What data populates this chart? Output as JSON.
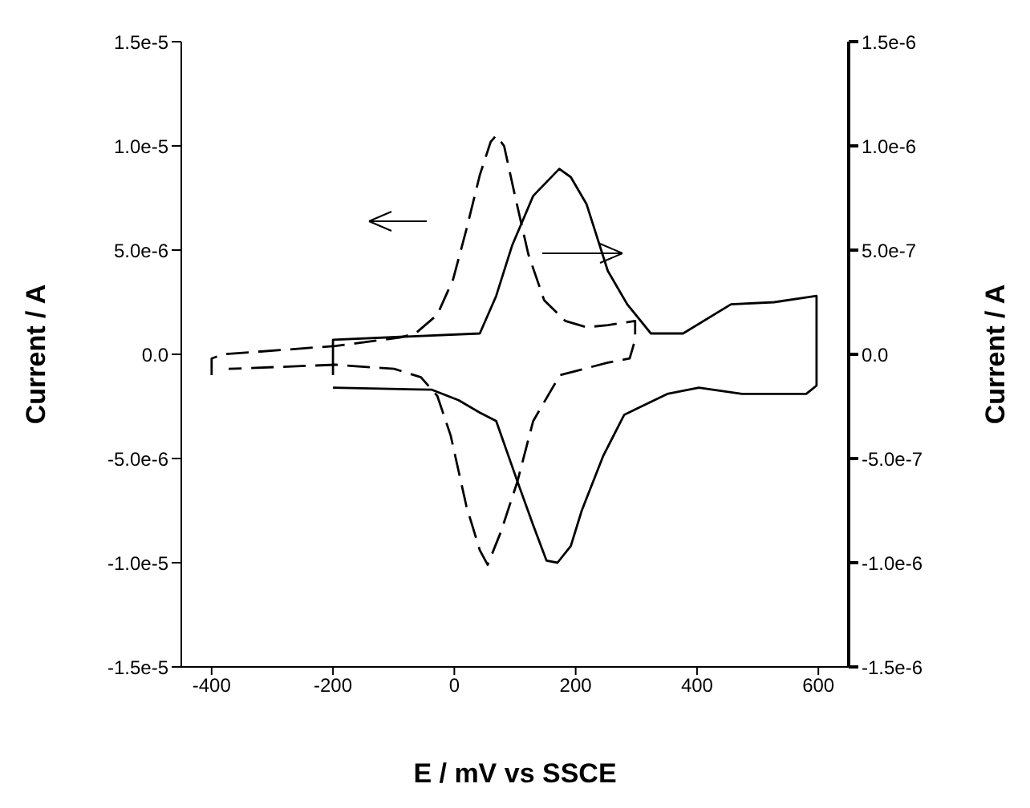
{
  "chart_data": {
    "type": "line",
    "xlabel": "E / mV vs SSCE",
    "ylabel": "Current / A",
    "y2label": "Current / A",
    "xlim": [
      -450,
      650
    ],
    "xticks": [
      -400,
      -200,
      0,
      200,
      400,
      600
    ],
    "ylim": [
      -1.5e-05,
      1.5e-05
    ],
    "yticks": [
      {
        "value": -1.5e-05,
        "label": "-1.5e-5"
      },
      {
        "value": -1e-05,
        "label": "-1.0e-5"
      },
      {
        "value": -5e-06,
        "label": "-5.0e-6"
      },
      {
        "value": 0,
        "label": "0.0"
      },
      {
        "value": 5e-06,
        "label": "5.0e-6"
      },
      {
        "value": 1e-05,
        "label": "1.0e-5"
      },
      {
        "value": 1.5e-05,
        "label": "1.5e-5"
      }
    ],
    "y2lim": [
      -1.5e-06,
      1.5e-06
    ],
    "y2ticks": [
      {
        "value": -1.5e-06,
        "label": "-1.5e-6"
      },
      {
        "value": -1e-06,
        "label": "-1.0e-6"
      },
      {
        "value": -5e-07,
        "label": "-5.0e-7"
      },
      {
        "value": 0,
        "label": "0.0"
      },
      {
        "value": 5e-07,
        "label": "5.0e-7"
      },
      {
        "value": 1e-06,
        "label": "1.0e-6"
      },
      {
        "value": 1.5e-06,
        "label": "1.5e-6"
      }
    ],
    "marker": "none",
    "series": [
      {
        "color": "#000000",
        "line_style": "dashed",
        "x": [
          -400,
          -400,
          -381,
          -196,
          -90,
          -64,
          -28,
          -2,
          20,
          42,
          60,
          69,
          82,
          100,
          122,
          148,
          183,
          218,
          253,
          298,
          298,
          289,
          253,
          174,
          130,
          104,
          77,
          55,
          42,
          20,
          -6,
          -28,
          -55,
          -99,
          -196,
          -372
        ],
        "values": [
          -1e-06,
          -2e-07,
          0,
          4e-07,
          8e-07,
          1e-06,
          1.9e-06,
          3.6e-06,
          6e-06,
          8.6e-06,
          1.02e-05,
          1.05e-05,
          1e-05,
          7.6e-06,
          4.8e-06,
          2.6e-06,
          1.6e-06,
          1.3e-06,
          1.4e-06,
          1.6e-06,
          7e-07,
          -2e-07,
          -4e-07,
          -1e-06,
          -3.2e-06,
          -6.1e-06,
          -8.5e-06,
          -1.01e-05,
          -9.4e-06,
          -7.3e-06,
          -3.9e-06,
          -2e-06,
          -1.1e-06,
          -7e-07,
          -5e-07,
          -7e-07
        ]
      },
      {
        "color": "#000000",
        "line_style": "solid",
        "axis": "y2",
        "x": [
          -200,
          -200,
          42,
          69,
          95,
          130,
          173,
          192,
          218,
          253,
          285,
          324,
          377,
          456,
          527,
          597,
          597,
          580,
          474,
          403,
          351,
          280,
          245,
          210,
          192,
          170,
          152,
          130,
          104,
          69,
          42,
          7,
          -37,
          -200
        ],
        "values": [
          -1e-07,
          7e-08,
          1e-07,
          2.8e-07,
          5.2e-07,
          7.6e-07,
          8.9e-07,
          8.5e-07,
          7.2e-07,
          4e-07,
          2.4e-07,
          1e-07,
          1e-07,
          2.4e-07,
          2.5e-07,
          2.8e-07,
          -1.5e-07,
          -1.9e-07,
          -1.9e-07,
          -1.6e-07,
          -1.9e-07,
          -2.9e-07,
          -4.9e-07,
          -7.5e-07,
          -9.2e-07,
          -1e-06,
          -9.9e-07,
          -8.2e-07,
          -6.1e-07,
          -3.2e-07,
          -2.8e-07,
          -2.2e-07,
          -1.7e-07,
          -1.6e-07
        ]
      }
    ]
  }
}
